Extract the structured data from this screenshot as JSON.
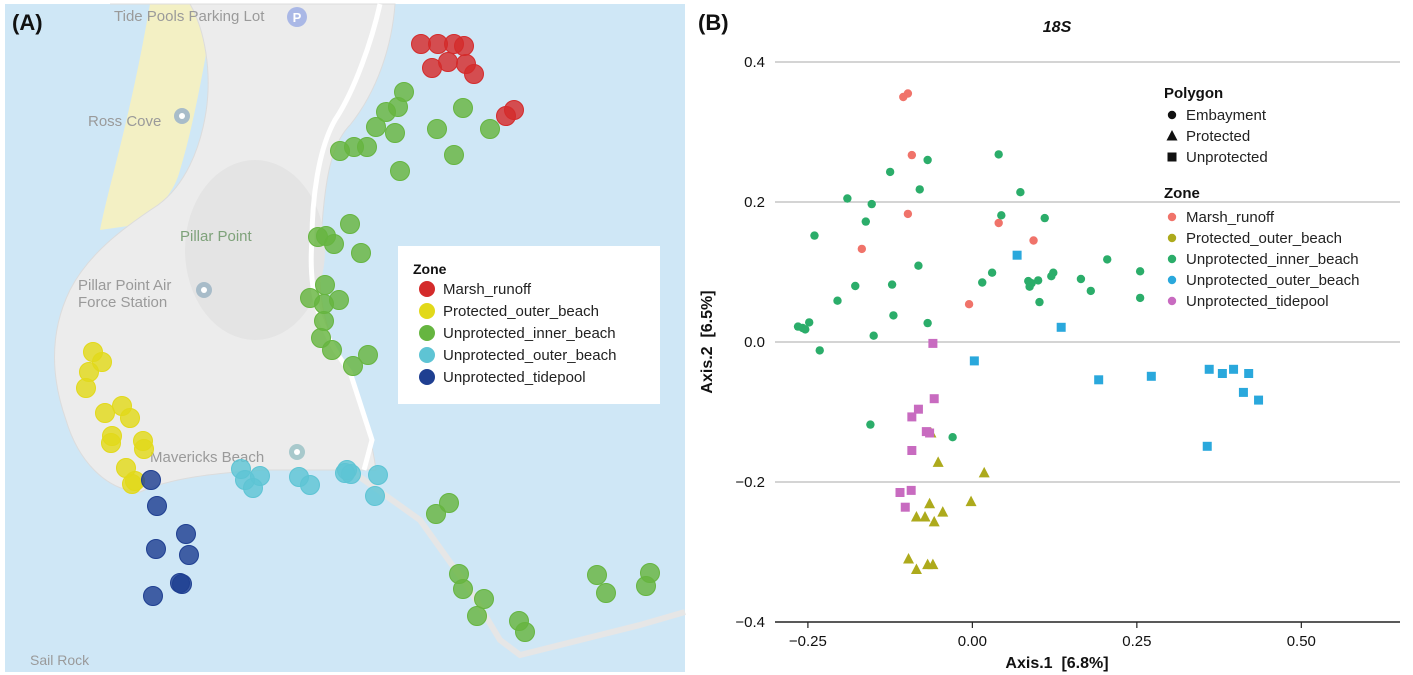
{
  "panel_a": {
    "letter": "(A)",
    "place_labels": {
      "tide_pools_parking": "Tide Pools Parking Lot",
      "ross_cove": "Ross Cove",
      "pillar_point": "Pillar Point",
      "air_force_line1": "Pillar Point Air",
      "air_force_line2": "Force Station",
      "mavericks_beach": "Mavericks Beach",
      "sail_rock": "Sail Rock"
    },
    "legend": {
      "title": "Zone",
      "items": [
        {
          "label": "Marsh_runoff",
          "color": "#d42b2b"
        },
        {
          "label": "Protected_outer_beach",
          "color": "#e2d91a"
        },
        {
          "label": "Unprotected_inner_beach",
          "color": "#66b540"
        },
        {
          "label": "Unprotected_outer_beach",
          "color": "#5ec4d4"
        },
        {
          "label": "Unprotected_tidepool",
          "color": "#1f3f91"
        }
      ]
    },
    "colors": {
      "water": "#cfe7f6",
      "land": "#ececec",
      "sand": "#f3f0c4",
      "road": "#ffffff"
    }
  },
  "chart_data": {
    "panel_letter": "(B)",
    "type": "scatter",
    "title": "18S",
    "xlabel": "Axis.1  [6.8%]",
    "ylabel": "Axis.2  [6.5%]",
    "xlim": [
      -0.3,
      0.65
    ],
    "ylim": [
      -0.4,
      0.4
    ],
    "x_ticks": [
      {
        "value": -0.25,
        "label": "−0.25"
      },
      {
        "value": 0,
        "label": "0.00"
      },
      {
        "value": 0.25,
        "label": "0.25"
      },
      {
        "value": 0.5,
        "label": "0.50"
      }
    ],
    "y_ticks": [
      {
        "value": -0.4,
        "label": "−0.4"
      },
      {
        "value": -0.2,
        "label": "−0.2"
      },
      {
        "value": 0,
        "label": "0.0"
      },
      {
        "value": 0.2,
        "label": "0.2"
      },
      {
        "value": 0.4,
        "label": "0.4"
      }
    ],
    "grid": "horizontal",
    "legend_placement": "top-right",
    "shape_legend": {
      "title": "Polygon",
      "items": [
        {
          "label": "Embayment",
          "shape": "circle"
        },
        {
          "label": "Protected",
          "shape": "triangle"
        },
        {
          "label": "Unprotected",
          "shape": "square"
        }
      ]
    },
    "color_legend": {
      "title": "Zone"
    },
    "series": [
      {
        "name": "Marsh_runoff",
        "color": "#f0736a",
        "shape": "circle",
        "x": [
          -0.105,
          -0.098,
          -0.092,
          -0.098,
          -0.168,
          0.04,
          0.093,
          -0.005
        ],
        "y": [
          0.35,
          0.355,
          0.267,
          0.183,
          0.133,
          0.17,
          0.145,
          0.054
        ]
      },
      {
        "name": "Protected_outer_beach",
        "color": "#adaa1c",
        "shape": "triangle",
        "x": [
          -0.063,
          -0.052,
          0.018,
          -0.002,
          -0.065,
          -0.085,
          -0.072,
          -0.045,
          -0.058,
          -0.097,
          -0.085,
          -0.068,
          -0.06
        ],
        "y": [
          -0.13,
          -0.172,
          -0.187,
          -0.228,
          -0.231,
          -0.25,
          -0.25,
          -0.243,
          -0.257,
          -0.31,
          -0.325,
          -0.318,
          -0.318
        ]
      },
      {
        "name": "Unprotected_inner_beach",
        "color": "#2bad6a",
        "shape": "circle",
        "x": [
          -0.19,
          -0.125,
          -0.068,
          -0.153,
          -0.08,
          -0.24,
          -0.162,
          -0.205,
          -0.178,
          -0.122,
          -0.082,
          -0.265,
          -0.258,
          -0.254,
          -0.248,
          -0.232,
          -0.15,
          -0.12,
          -0.068,
          0.04,
          0.044,
          0.073,
          0.11,
          0.205,
          0.255,
          0.015,
          0.03,
          0.085,
          0.09,
          0.1,
          0.12,
          0.123,
          0.165,
          0.18,
          0.087,
          0.102,
          0.255,
          -0.155,
          -0.03
        ],
        "y": [
          0.205,
          0.243,
          0.26,
          0.197,
          0.218,
          0.152,
          0.172,
          0.059,
          0.08,
          0.082,
          0.109,
          0.022,
          0.02,
          0.018,
          0.028,
          -0.012,
          0.009,
          0.038,
          0.027,
          0.268,
          0.181,
          0.214,
          0.177,
          0.118,
          0.101,
          0.085,
          0.099,
          0.087,
          0.084,
          0.088,
          0.094,
          0.099,
          0.09,
          0.073,
          0.079,
          0.057,
          0.063,
          -0.118,
          -0.136
        ]
      },
      {
        "name": "Unprotected_outer_beach",
        "color": "#2aa8dc",
        "shape": "square",
        "x": [
          0.068,
          0.135,
          0.003,
          0.192,
          0.272,
          0.357,
          0.36,
          0.38,
          0.397,
          0.42,
          0.412,
          0.435
        ],
        "y": [
          0.124,
          0.021,
          -0.027,
          -0.054,
          -0.049,
          -0.149,
          -0.039,
          -0.045,
          -0.039,
          -0.045,
          -0.072,
          -0.083
        ]
      },
      {
        "name": "Unprotected_tidepool",
        "color": "#c86bc0",
        "shape": "square",
        "x": [
          -0.06,
          -0.058,
          -0.082,
          -0.092,
          -0.07,
          -0.065,
          -0.092,
          -0.11,
          -0.093,
          -0.102
        ],
        "y": [
          -0.002,
          -0.081,
          -0.096,
          -0.107,
          -0.128,
          -0.13,
          -0.155,
          -0.215,
          -0.212,
          -0.236
        ]
      }
    ]
  }
}
